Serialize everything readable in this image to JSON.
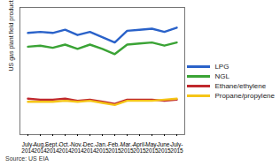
{
  "chart_data": {
    "type": "line",
    "y_label": "US gas plant field production, Mbpd",
    "caption": "Source: US EIA",
    "categories": [
      "July-2014",
      "Aug.-2014",
      "Sept.-2014",
      "Oct.-2014",
      "Nov.-2014",
      "Dec.-2014",
      "Jan.-2015",
      "Feb.-2015",
      "Mar.-2015",
      "April-2015",
      "May-2015",
      "June-2015",
      "July-2015"
    ],
    "series": [
      {
        "name": "LPG",
        "color": "#2a62c9",
        "values": [
          96,
          97,
          96,
          99,
          94,
          97,
          92,
          87,
          98,
          99,
          100,
          97,
          101
        ]
      },
      {
        "name": "NGL",
        "color": "#3aa335",
        "values": [
          83,
          84,
          82,
          85,
          81,
          85,
          81,
          76,
          85,
          86,
          87,
          84,
          87
        ]
      },
      {
        "name": "Ethane/ethylene",
        "color": "#c0282d",
        "values": [
          34,
          33,
          33,
          34,
          32,
          33,
          31,
          29,
          33,
          33,
          33,
          32,
          33
        ]
      },
      {
        "name": "Propane/propylene",
        "color": "#f5c518",
        "values": [
          31,
          31,
          31,
          32,
          31,
          32,
          30,
          28,
          32,
          32,
          32,
          33,
          34
        ]
      }
    ],
    "ylim": [
      0,
      120
    ],
    "tick_labels": "x",
    "legend": "right"
  }
}
